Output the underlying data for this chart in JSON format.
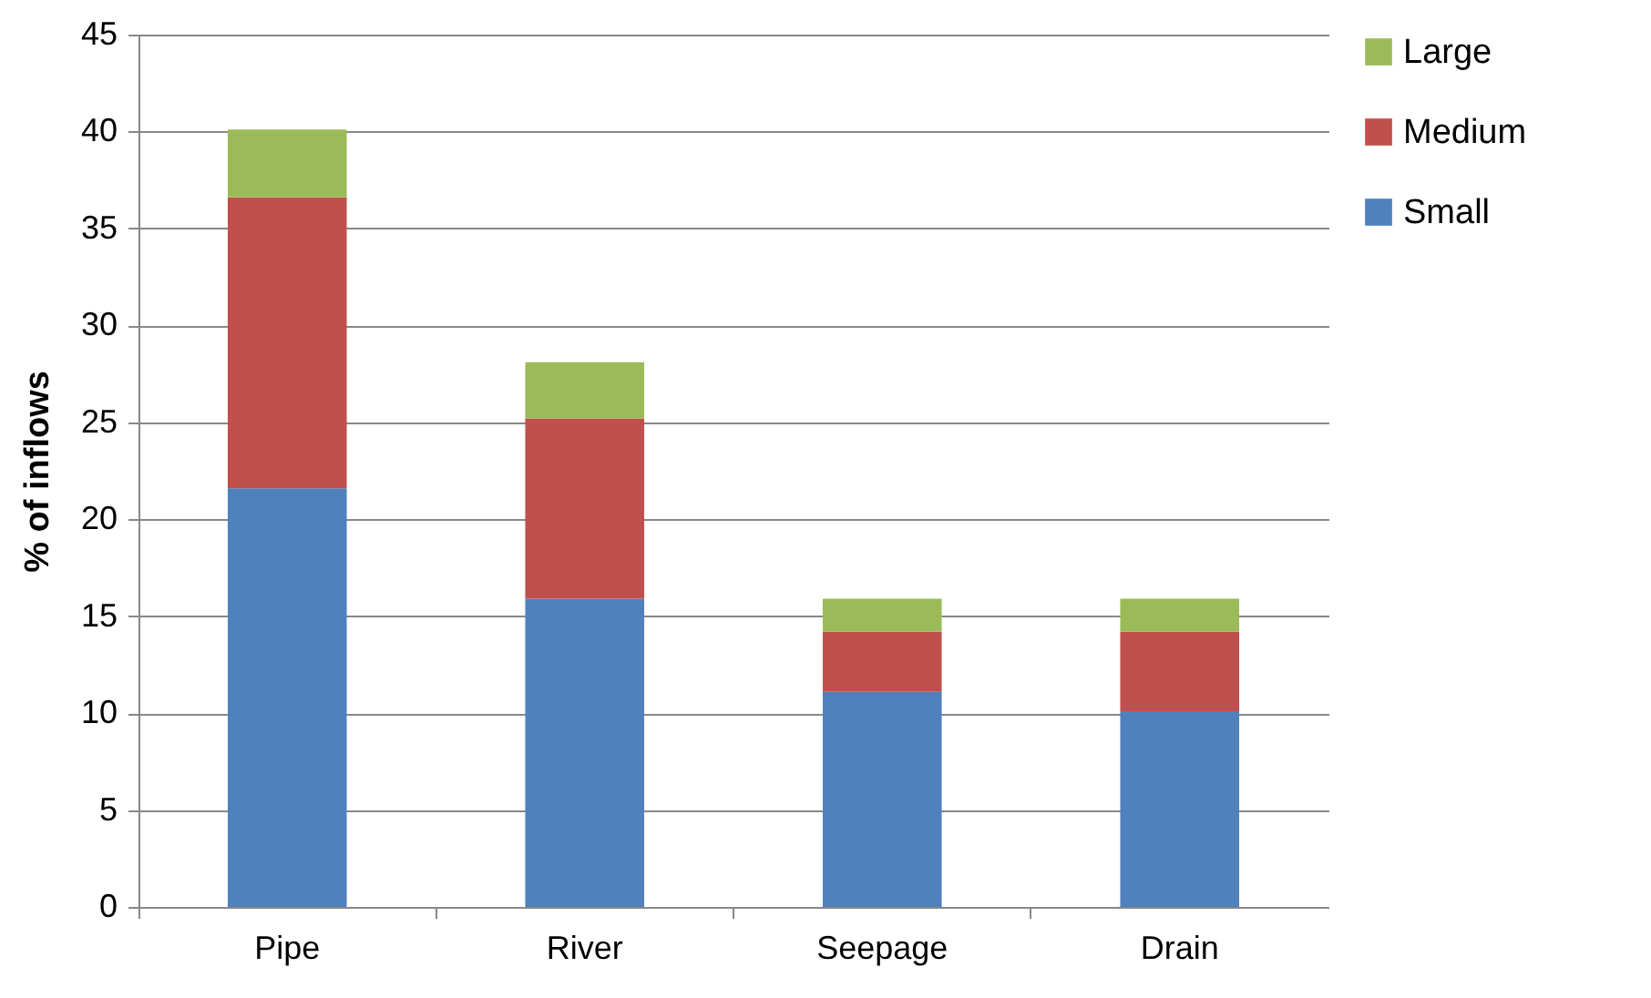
{
  "chart_data": {
    "type": "bar",
    "stacked": true,
    "ylabel": "% of inflows",
    "categories": [
      "Pipe",
      "River",
      "Seepage",
      "Drain"
    ],
    "series": [
      {
        "name": "Small",
        "color": "#4f81bd",
        "values": [
          21.6,
          15.9,
          11.1,
          10.1
        ]
      },
      {
        "name": "Medium",
        "color": "#c0504d",
        "values": [
          15.0,
          9.3,
          3.1,
          4.1
        ]
      },
      {
        "name": "Large",
        "color": "#9bbb59",
        "values": [
          3.5,
          2.9,
          1.7,
          1.7
        ]
      }
    ],
    "ylim": [
      0,
      45
    ],
    "yticks": [
      0,
      5,
      10,
      15,
      20,
      25,
      30,
      35,
      40,
      45
    ],
    "grid": "y",
    "legend": "right"
  }
}
